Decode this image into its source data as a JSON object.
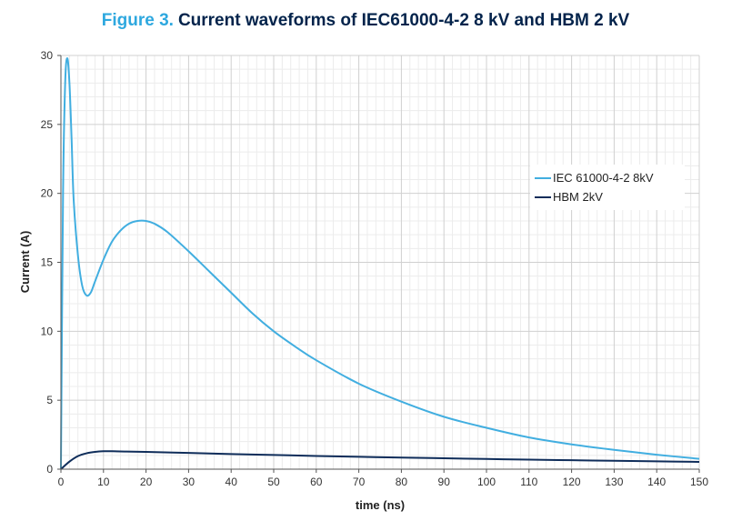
{
  "chart_data": {
    "type": "line",
    "title_prefix": "Figure 3.",
    "title": "Current waveforms of IEC61000-4-2 8 kV and HBM 2 kV",
    "xlabel": "time (ns)",
    "ylabel": "Current (A)",
    "xlim": [
      0,
      150
    ],
    "ylim": [
      0,
      30
    ],
    "xticks": [
      "0",
      "10",
      "20",
      "30",
      "40",
      "50",
      "60",
      "70",
      "80",
      "90",
      "100",
      "110",
      "120",
      "130",
      "140",
      "150"
    ],
    "yticks": [
      "0",
      "5",
      "10",
      "15",
      "20",
      "25",
      "30"
    ],
    "grid": true,
    "legend_position": "right",
    "series": [
      {
        "name": "IEC 61000-4-2 8kV",
        "color": "#41aee0",
        "x": [
          0,
          0.5,
          1,
          1.5,
          2,
          2.5,
          3,
          4,
          5,
          6,
          7,
          8,
          10,
          12,
          14,
          16,
          18,
          20,
          22,
          25,
          30,
          35,
          40,
          45,
          50,
          55,
          60,
          70,
          80,
          90,
          100,
          110,
          120,
          130,
          140,
          150
        ],
        "values": [
          0,
          20,
          28,
          29.8,
          28,
          24,
          19.5,
          15.5,
          13.3,
          12.6,
          12.8,
          13.6,
          15.2,
          16.5,
          17.3,
          17.8,
          18.0,
          18.0,
          17.8,
          17.2,
          15.8,
          14.3,
          12.8,
          11.3,
          10.0,
          8.9,
          7.9,
          6.2,
          4.9,
          3.8,
          3.0,
          2.3,
          1.8,
          1.4,
          1.05,
          0.75
        ]
      },
      {
        "name": "HBM 2kV",
        "color": "#0f2d5a",
        "x": [
          0,
          2,
          4,
          6,
          8,
          10,
          12,
          15,
          20,
          30,
          40,
          50,
          60,
          70,
          80,
          90,
          100,
          110,
          120,
          130,
          140,
          150
        ],
        "values": [
          0,
          0.55,
          0.95,
          1.15,
          1.25,
          1.3,
          1.3,
          1.28,
          1.25,
          1.18,
          1.1,
          1.03,
          0.96,
          0.9,
          0.84,
          0.79,
          0.74,
          0.69,
          0.65,
          0.61,
          0.57,
          0.53
        ]
      }
    ]
  }
}
